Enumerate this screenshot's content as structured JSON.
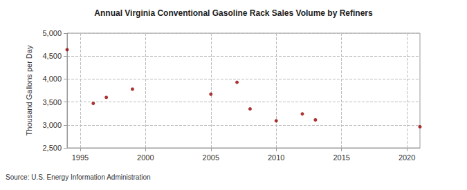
{
  "chart_data": {
    "type": "scatter",
    "title": "Annual Virginia Conventional Gasoline Rack Sales Volume by Refiners",
    "y_label": "Thousand Gallons per Day",
    "source": "Source: U.S. Energy Information Administration",
    "x": [
      1994,
      1996,
      1997,
      1999,
      2005,
      2007,
      2008,
      2010,
      2012,
      2013,
      2021
    ],
    "values": [
      4640,
      3470,
      3600,
      3780,
      3670,
      3930,
      3350,
      3090,
      3240,
      3110,
      2960
    ],
    "color": "#990000",
    "marker": "circle",
    "xlim": [
      1994,
      2021
    ],
    "xticks": [
      1995,
      2000,
      2005,
      2010,
      2015,
      2020
    ],
    "ylim": [
      2500,
      5000
    ],
    "yticks": [
      {
        "value": 2500,
        "label": "2,500"
      },
      {
        "value": 3000,
        "label": "3,000"
      },
      {
        "value": 3500,
        "label": "3,500"
      },
      {
        "value": 4000,
        "label": "4,000"
      },
      {
        "value": 4500,
        "label": "4,500"
      },
      {
        "value": 5000,
        "label": "5,000"
      }
    ],
    "grid": true
  }
}
